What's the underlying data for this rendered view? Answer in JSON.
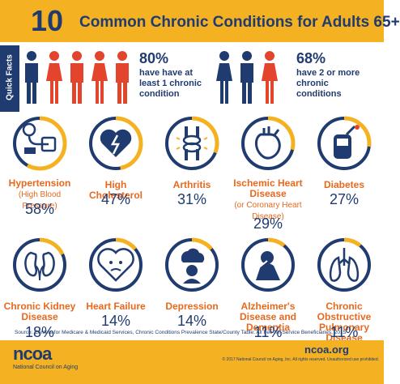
{
  "header": {
    "number": "10",
    "title": "Common Chronic Conditions for Adults 65+"
  },
  "quick_facts": {
    "label": "Quick Facts",
    "left": {
      "percent": "80%",
      "text_line1": "have have at",
      "text_line2": "least 1 chronic",
      "text_line3": "condition"
    },
    "right": {
      "percent": "68%",
      "text_line1": "have 2 or more",
      "text_line2": "chronic",
      "text_line3": "conditions"
    }
  },
  "conditions": [
    {
      "name": "Hypertension",
      "sub": "(High Blood Pressure)",
      "pct": "58%",
      "value": 58,
      "icon": "blood-pressure-icon"
    },
    {
      "name": "High Cholesterol",
      "sub": "",
      "pct": "47%",
      "value": 47,
      "icon": "broken-heart-icon"
    },
    {
      "name": "Arthritis",
      "sub": "",
      "pct": "31%",
      "value": 31,
      "icon": "knee-joint-icon"
    },
    {
      "name": "Ischemic Heart Disease",
      "sub": "(or Coronary Heart Disease)",
      "pct": "29%",
      "value": 29,
      "icon": "heart-organ-icon"
    },
    {
      "name": "Diabetes",
      "sub": "",
      "pct": "27%",
      "value": 27,
      "icon": "glucose-meter-icon"
    },
    {
      "name": "Chronic Kidney Disease",
      "sub": "",
      "pct": "18%",
      "value": 18,
      "icon": "kidneys-icon"
    },
    {
      "name": "Heart Failure",
      "sub": "",
      "pct": "14%",
      "value": 14,
      "icon": "sad-heart-icon"
    },
    {
      "name": "Depression",
      "sub": "",
      "pct": "14%",
      "value": 14,
      "icon": "storm-cloud-head-icon"
    },
    {
      "name": "Alzheimer's Disease and Dementia",
      "sub": "",
      "pct": "11%",
      "value": 11,
      "icon": "head-in-hands-icon"
    },
    {
      "name": "Chronic Obstructive Pulmonary Disease",
      "sub": "",
      "pct": "11%",
      "value": 11,
      "icon": "lungs-icon"
    }
  ],
  "source": "Source: Centers for Medicare & Medicaid Services, Chronic Conditions Prevalence State/County Table: All Fee-for-Service Beneficiaries, 2015",
  "footer": {
    "logo": "ncoa",
    "logo_sub": "National Council on Aging",
    "url": "ncoa.org",
    "copyright": "© 2017 National Council on Aging, Inc. All rights reserved. Unauthorized use prohibited."
  },
  "colors": {
    "navy": "#1f3b6f",
    "gold": "#f4b223",
    "orange": "#e8691e",
    "red": "#e2452b",
    "ring_track": "#1f3b6f",
    "ring_fill": "#f4b223"
  }
}
